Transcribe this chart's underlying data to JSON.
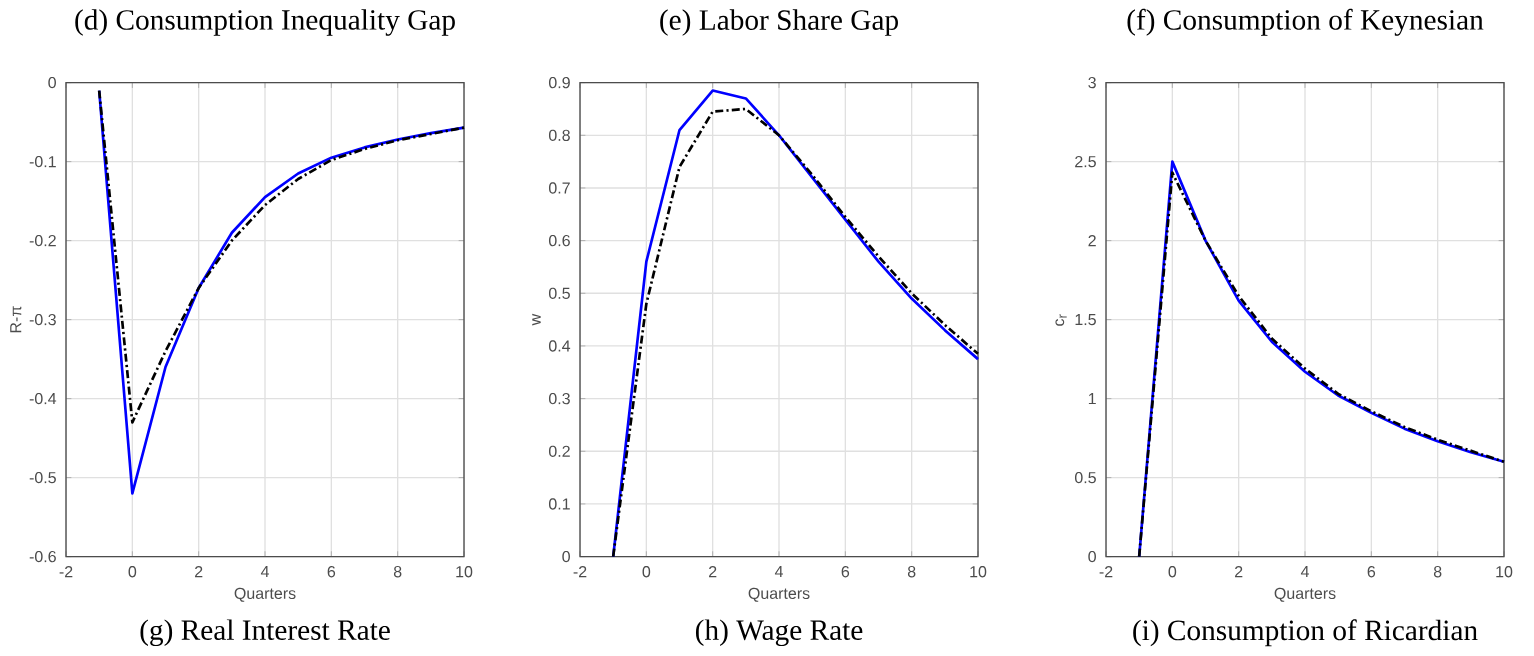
{
  "chart_data": [
    {
      "type": "line",
      "title": "(d) Consumption Inequality Gap",
      "annotations": [
        "(g) Real Interest Rate"
      ],
      "xlabel": "Quarters",
      "ylabel": "R-π",
      "x": [
        -1,
        0,
        1,
        2,
        3,
        4,
        5,
        6,
        7,
        8,
        9,
        10
      ],
      "xlim": [
        -2,
        10
      ],
      "xticks": [
        -2,
        0,
        2,
        4,
        6,
        8,
        10
      ],
      "ylim": [
        -0.6,
        0
      ],
      "yticks": [
        -0.6,
        -0.5,
        -0.4,
        -0.3,
        -0.2,
        -0.1,
        0
      ],
      "grid": true,
      "series": [
        {
          "color": "#0000ff",
          "line_style": "solid",
          "values": [
            -0.01,
            -0.52,
            -0.36,
            -0.26,
            -0.19,
            -0.145,
            -0.115,
            -0.095,
            -0.082,
            -0.072,
            -0.064,
            -0.057
          ]
        },
        {
          "color": "#000000",
          "line_style": "dashed",
          "values": [
            -0.01,
            -0.43,
            -0.34,
            -0.26,
            -0.2,
            -0.155,
            -0.122,
            -0.098,
            -0.084,
            -0.073,
            -0.065,
            -0.057
          ]
        }
      ]
    },
    {
      "type": "line",
      "title": "(e) Labor Share Gap",
      "annotations": [
        "(h) Wage Rate"
      ],
      "xlabel": "Quarters",
      "ylabel": "w",
      "x": [
        -1,
        0,
        1,
        2,
        3,
        4,
        5,
        6,
        7,
        8,
        9,
        10
      ],
      "xlim": [
        -2,
        10
      ],
      "xticks": [
        -2,
        0,
        2,
        4,
        6,
        8,
        10
      ],
      "ylim": [
        0,
        0.9
      ],
      "yticks": [
        0,
        0.1,
        0.2,
        0.3,
        0.4,
        0.5,
        0.6,
        0.7,
        0.8,
        0.9
      ],
      "grid": true,
      "series": [
        {
          "color": "#0000ff",
          "line_style": "solid",
          "values": [
            0,
            0.56,
            0.81,
            0.885,
            0.87,
            0.8,
            0.72,
            0.64,
            0.56,
            0.49,
            0.43,
            0.375
          ]
        },
        {
          "color": "#000000",
          "line_style": "dashed",
          "values": [
            0,
            0.48,
            0.74,
            0.845,
            0.85,
            0.8,
            0.725,
            0.645,
            0.57,
            0.5,
            0.44,
            0.385
          ]
        }
      ]
    },
    {
      "type": "line",
      "title": "(f) Consumption of Keynesian",
      "annotations": [
        "(i) Consumption of Ricardian"
      ],
      "xlabel": "Quarters",
      "ylabel": "c$_{r}$",
      "x": [
        -1,
        0,
        1,
        2,
        3,
        4,
        5,
        6,
        7,
        8,
        9,
        10
      ],
      "xlim": [
        -2,
        10
      ],
      "xticks": [
        -2,
        0,
        2,
        4,
        6,
        8,
        10
      ],
      "ylim": [
        0,
        3
      ],
      "yticks": [
        0,
        0.5,
        1,
        1.5,
        2,
        2.5,
        3
      ],
      "grid": true,
      "series": [
        {
          "color": "#0000ff",
          "line_style": "solid",
          "values": [
            0,
            2.5,
            2.0,
            1.62,
            1.36,
            1.17,
            1.02,
            0.91,
            0.81,
            0.73,
            0.66,
            0.6
          ]
        },
        {
          "color": "#000000",
          "line_style": "dashed",
          "values": [
            0,
            2.43,
            2.0,
            1.65,
            1.38,
            1.19,
            1.03,
            0.92,
            0.82,
            0.74,
            0.67,
            0.6
          ]
        }
      ]
    }
  ]
}
